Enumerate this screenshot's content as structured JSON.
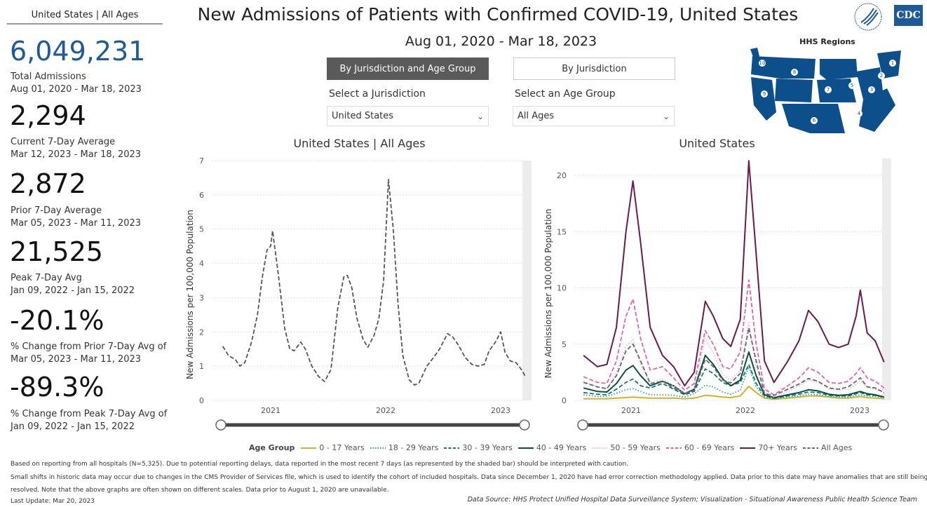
{
  "kpi": {
    "header": "United States | All Ages",
    "items": [
      {
        "value": "6,049,231",
        "label": "Total Admissions",
        "sub": "Aug 01, 2020 - Mar 18, 2023"
      },
      {
        "value": "2,294",
        "label": "Current 7-Day Average",
        "sub": "Mar 12, 2023 - Mar 18, 2023"
      },
      {
        "value": "2,872",
        "label": "Prior 7-Day Average",
        "sub": "Mar 05, 2023 - Mar 11, 2023"
      },
      {
        "value": "21,525",
        "label": "Peak 7-Day Avg",
        "sub": "Jan 09, 2022 - Jan 15, 2022"
      },
      {
        "value": "-20.1%",
        "label": "% Change from Prior 7-Day Avg of",
        "sub": "Mar 05, 2023 - Mar 11, 2023"
      },
      {
        "value": "-89.3%",
        "label": "% Change from Peak 7-Day Avg of",
        "sub": "Jan 09, 2022 - Jan 15, 2022"
      }
    ]
  },
  "header": {
    "title": "New Admissions of Patients with Confirmed COVID-19, United States",
    "date_range": "Aug 01, 2020 - Mar 18, 2023",
    "logos": {
      "hhs": "HHS seal",
      "cdc": "CDC"
    }
  },
  "controls": {
    "buttons": [
      {
        "label": "By Jurisdiction and Age Group",
        "selected": true
      },
      {
        "label": "By Jurisdiction",
        "selected": false
      }
    ],
    "jurisdiction": {
      "label": "Select a Jurisdiction",
      "value": "United States"
    },
    "age_group": {
      "label": "Select an Age Group",
      "value": "All Ages"
    }
  },
  "map": {
    "title": "HHS Regions",
    "regions": [
      "1",
      "2",
      "3",
      "4",
      "5",
      "6",
      "7",
      "8",
      "9",
      "10"
    ],
    "color": "#0d4f8b"
  },
  "chart_data": [
    {
      "type": "line",
      "title": "United States | All Ages",
      "ylabel": "New Admissions per 100,000 Population",
      "xlabel": "",
      "ylim": [
        0,
        7
      ],
      "yticks": [
        "0",
        "1",
        "2",
        "3",
        "4",
        "5",
        "6",
        "7"
      ],
      "xticks": [
        "2021",
        "2022",
        "2023"
      ],
      "grid": true,
      "series": [
        {
          "color": "#555555",
          "style": "dashed",
          "x": [
            "2020-08-01",
            "2020-08-20",
            "2020-09-10",
            "2020-09-25",
            "2020-10-10",
            "2020-11-01",
            "2020-11-20",
            "2020-12-05",
            "2020-12-20",
            "2021-01-01",
            "2021-01-07",
            "2021-01-25",
            "2021-02-15",
            "2021-03-01",
            "2021-03-15",
            "2021-04-05",
            "2021-04-20",
            "2021-05-10",
            "2021-06-01",
            "2021-06-20",
            "2021-07-10",
            "2021-08-01",
            "2021-08-20",
            "2021-09-01",
            "2021-09-15",
            "2021-10-01",
            "2021-10-20",
            "2021-11-05",
            "2021-11-25",
            "2021-12-10",
            "2021-12-25",
            "2022-01-10",
            "2022-01-25",
            "2022-02-10",
            "2022-02-25",
            "2022-03-15",
            "2022-04-01",
            "2022-04-15",
            "2022-05-10",
            "2022-06-01",
            "2022-06-20",
            "2022-07-15",
            "2022-08-01",
            "2022-08-20",
            "2022-09-10",
            "2022-10-01",
            "2022-10-20",
            "2022-11-10",
            "2022-11-25",
            "2022-12-15",
            "2023-01-01",
            "2023-01-15",
            "2023-02-01",
            "2023-02-20",
            "2023-03-10",
            "2023-03-18"
          ],
          "y": [
            1.58,
            1.3,
            1.2,
            1.0,
            1.1,
            1.7,
            2.5,
            3.6,
            4.4,
            4.5,
            4.95,
            3.7,
            2.1,
            1.5,
            1.45,
            1.7,
            1.5,
            1.0,
            0.7,
            0.55,
            0.9,
            2.7,
            3.6,
            3.65,
            3.3,
            2.4,
            1.8,
            1.55,
            1.9,
            2.4,
            3.5,
            6.45,
            5.0,
            2.8,
            1.3,
            0.6,
            0.45,
            0.5,
            1.0,
            1.25,
            1.5,
            1.95,
            1.85,
            1.6,
            1.25,
            1.05,
            1.0,
            1.05,
            1.45,
            1.7,
            2.0,
            1.4,
            1.15,
            1.1,
            0.85,
            0.7
          ]
        }
      ]
    },
    {
      "type": "line",
      "title": "United States",
      "ylabel": "New Admissions per 100,000 Population",
      "xlabel": "",
      "ylim": [
        0,
        21.5
      ],
      "yticks": [
        "0",
        "5",
        "10",
        "15",
        "20"
      ],
      "xticks": [
        "2021",
        "2022",
        "2023"
      ],
      "grid": true,
      "legend_title": "Age Group",
      "legend_position": "bottom",
      "x": [
        "2020-08-01",
        "2020-09-15",
        "2020-10-15",
        "2020-11-15",
        "2020-12-15",
        "2021-01-07",
        "2021-02-01",
        "2021-03-01",
        "2021-04-10",
        "2021-05-15",
        "2021-06-20",
        "2021-07-20",
        "2021-08-25",
        "2021-09-20",
        "2021-10-20",
        "2021-11-15",
        "2021-12-15",
        "2022-01-12",
        "2022-02-05",
        "2022-03-01",
        "2022-04-01",
        "2022-05-15",
        "2022-06-20",
        "2022-07-20",
        "2022-08-20",
        "2022-09-25",
        "2022-10-25",
        "2022-11-25",
        "2022-12-20",
        "2023-01-03",
        "2023-01-25",
        "2023-02-20",
        "2023-03-18"
      ],
      "series": [
        {
          "name": "0 - 17 Years",
          "color": "#d4b12a",
          "style": "solid",
          "y": [
            0.15,
            0.15,
            0.15,
            0.2,
            0.25,
            0.3,
            0.25,
            0.2,
            0.2,
            0.2,
            0.15,
            0.2,
            0.45,
            0.4,
            0.3,
            0.25,
            0.4,
            1.25,
            0.7,
            0.2,
            0.1,
            0.2,
            0.3,
            0.4,
            0.4,
            0.3,
            0.2,
            0.2,
            0.3,
            0.35,
            0.25,
            0.2,
            0.15
          ]
        },
        {
          "name": "18 - 29 Years",
          "color": "#1fa6a0",
          "style": "dotted",
          "y": [
            0.5,
            0.35,
            0.35,
            0.65,
            0.95,
            1.05,
            0.8,
            0.5,
            0.5,
            0.45,
            0.3,
            0.6,
            1.35,
            1.2,
            0.75,
            0.55,
            0.9,
            3.0,
            1.2,
            0.3,
            0.15,
            0.3,
            0.4,
            0.55,
            0.5,
            0.35,
            0.3,
            0.3,
            0.45,
            0.5,
            0.4,
            0.35,
            0.25
          ]
        },
        {
          "name": "30 - 39 Years",
          "color": "#17766a",
          "style": "dashed",
          "y": [
            0.7,
            0.55,
            0.5,
            1.0,
            1.6,
            1.9,
            1.3,
            1.1,
            1.5,
            1.0,
            0.5,
            0.8,
            2.8,
            2.4,
            1.6,
            1.3,
            1.6,
            3.2,
            1.5,
            0.4,
            0.2,
            0.4,
            0.55,
            0.75,
            0.7,
            0.45,
            0.4,
            0.4,
            0.6,
            0.7,
            0.5,
            0.45,
            0.3
          ]
        },
        {
          "name": "40 - 49 Years",
          "color": "#0a4d42",
          "style": "solid",
          "y": [
            1.1,
            0.8,
            0.75,
            1.5,
            2.7,
            3.1,
            2.2,
            1.3,
            1.7,
            1.3,
            0.6,
            1.0,
            4.0,
            3.2,
            1.9,
            1.3,
            1.8,
            4.3,
            2.2,
            0.5,
            0.25,
            0.5,
            0.7,
            0.95,
            0.85,
            0.55,
            0.45,
            0.5,
            0.7,
            0.8,
            0.6,
            0.5,
            0.3
          ]
        },
        {
          "name": "50 - 59 Years",
          "color": "#f2b6d6",
          "style": "dotted",
          "y": [
            1.7,
            1.2,
            1.0,
            2.5,
            4.8,
            5.4,
            3.2,
            1.6,
            1.9,
            1.3,
            0.7,
            1.1,
            5.5,
            4.2,
            2.3,
            1.8,
            2.7,
            6.9,
            3.0,
            0.7,
            0.3,
            0.8,
            1.3,
            1.8,
            1.6,
            1.0,
            0.9,
            1.0,
            1.4,
            1.8,
            1.2,
            1.0,
            0.7
          ]
        },
        {
          "name": "60 - 69 Years",
          "color": "#e064a6",
          "style": "dashed",
          "y": [
            2.1,
            1.6,
            1.5,
            3.5,
            7.5,
            9.0,
            5.5,
            2.7,
            3.0,
            2.0,
            0.9,
            1.5,
            6.2,
            5.0,
            3.0,
            2.8,
            4.3,
            10.7,
            5.0,
            1.0,
            0.5,
            1.3,
            2.0,
            2.9,
            2.5,
            1.6,
            1.5,
            1.7,
            2.4,
            2.9,
            2.0,
            1.7,
            1.1
          ]
        },
        {
          "name": "70+ Years",
          "color": "#6b1a4a",
          "style": "solid",
          "y": [
            4.0,
            3.0,
            3.2,
            6.5,
            15,
            19.5,
            14,
            6.5,
            4.0,
            3.0,
            1.3,
            2.5,
            8.8,
            7.5,
            5.5,
            4.8,
            7.2,
            21.3,
            13,
            3.5,
            1.6,
            3.5,
            5.3,
            8.0,
            7.0,
            5.0,
            4.7,
            5.0,
            7.5,
            9.8,
            6.0,
            5.3,
            3.4
          ]
        },
        {
          "name": "All Ages",
          "color": "#666666",
          "style": "dashed",
          "y": [
            1.6,
            1.2,
            1.05,
            2.2,
            4.4,
            5.0,
            3.5,
            1.5,
            1.7,
            1.1,
            0.6,
            0.9,
            3.65,
            3.0,
            1.8,
            1.55,
            2.4,
            6.45,
            3.5,
            0.6,
            0.45,
            1.0,
            1.45,
            1.95,
            1.7,
            1.1,
            1.0,
            1.2,
            1.7,
            2.0,
            1.2,
            1.1,
            0.7
          ]
        }
      ]
    }
  ],
  "footer": {
    "note1": "Based on reporting from all hospitals (N=5,325). Due to potential reporting delays, data reported in the most recent 7 days (as represented by the shaded bar) should be interpreted with caution.",
    "note2": "Small shifts in historic data may occur due to changes in the CMS Provider of Services file, which is used to identify the cohort of included hospitals. Data since December 1, 2020 have had error correction methodology applied. Data prior to this date may have anomalies that are still being",
    "note3": "resolved. Note that the above graphs are often shown on different scales. Data prior to August 1, 2020 are unavailable.",
    "last_update": "Last Update: Mar 20, 2023",
    "source": "Data Source: HHS Protect Unified Hospital Data Surveillance System; Visualization - Situational Awareness Public Health Science Team"
  }
}
